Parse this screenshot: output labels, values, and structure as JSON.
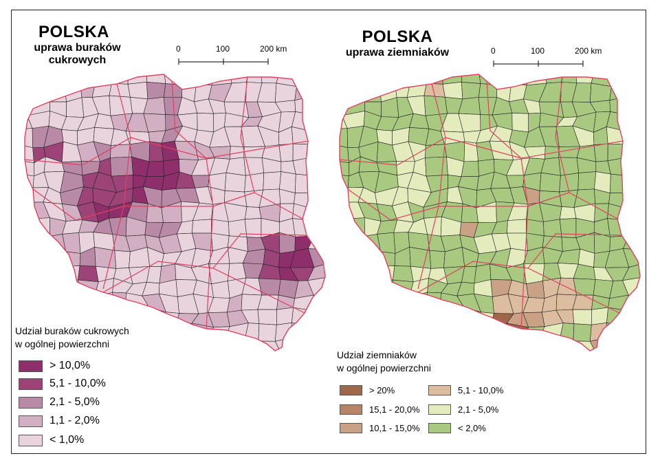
{
  "left_map": {
    "title": "POLSKA",
    "subtitle_line1": "uprawa buraków",
    "subtitle_line2": "cukrowych",
    "scale_labels": [
      "0",
      "100",
      "200 km"
    ],
    "legend_title_line1": "Udział buraków cukrowych",
    "legend_title_line2": "w ogólnej powierzchni",
    "legend": [
      {
        "label": "> 10,0%",
        "color": "#8e2f6b"
      },
      {
        "label": "5,1 - 10,0%",
        "color": "#9c4478"
      },
      {
        "label": "2,1 - 5,0%",
        "color": "#b98aa6"
      },
      {
        "label": "1,1 - 2,0%",
        "color": "#d2afc2"
      },
      {
        "label": "< 1,0%",
        "color": "#e9d3dd"
      }
    ]
  },
  "right_map": {
    "title": "POLSKA",
    "subtitle": "uprawa ziemniaków",
    "scale_labels": [
      "0",
      "100",
      "200 km"
    ],
    "legend_title_line1": "Udział ziemniaków",
    "legend_title_line2": "w ogólnej powierzchni",
    "legend": [
      {
        "label": "> 20%",
        "color": "#a0684b"
      },
      {
        "label": "15,1 - 20,0%",
        "color": "#b78566"
      },
      {
        "label": "10,1 - 15,0%",
        "color": "#c9a184"
      },
      {
        "label": "5,1 - 10,0%",
        "color": "#dcbd9f"
      },
      {
        "label": "2,1 - 5,0%",
        "color": "#e4ecbe"
      },
      {
        "label": "< 2,0%",
        "color": "#a9c880"
      }
    ]
  },
  "colors": {
    "district_border": "#222222",
    "voivodeship_border": "#e0405f"
  }
}
